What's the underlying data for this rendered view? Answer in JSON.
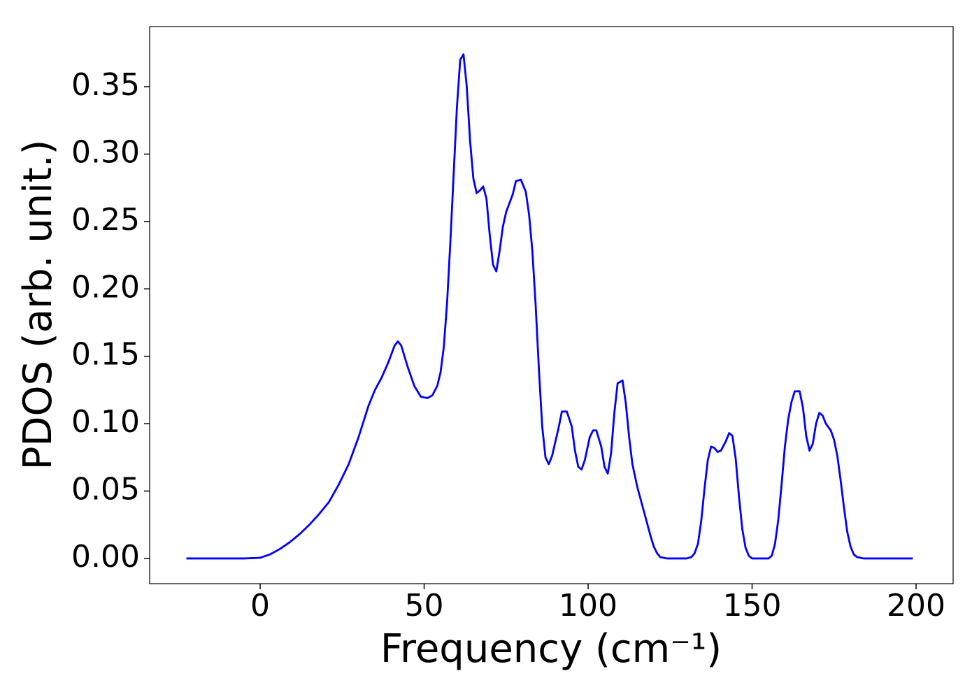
{
  "chart_data": {
    "type": "line",
    "xlabel": "Frequency (cm⁻¹)",
    "ylabel": "PDOS (arb. unit.)",
    "xlim": [
      -33.7,
      211.3
    ],
    "ylim": [
      -0.0187,
      0.3946
    ],
    "xticks": [
      0,
      50,
      100,
      150,
      200
    ],
    "yticks": [
      {
        "value": 0,
        "label": "0.00"
      },
      {
        "value": 0.05,
        "label": "0.05"
      },
      {
        "value": 0.1,
        "label": "0.10"
      },
      {
        "value": 0.15,
        "label": "0.15"
      },
      {
        "value": 0.2,
        "label": "0.20"
      },
      {
        "value": 0.25,
        "label": "0.25"
      },
      {
        "value": 0.3,
        "label": "0.30"
      },
      {
        "value": 0.35,
        "label": "0.35"
      }
    ],
    "grid": false,
    "series": [
      {
        "color": "#0000ff",
        "x": [
          -22.5,
          -10,
          -5,
          0,
          3,
          6,
          9,
          12,
          15,
          18,
          21,
          24,
          27,
          30,
          33,
          35,
          37,
          39,
          41,
          42,
          43,
          45,
          47,
          49,
          51,
          52.5,
          54,
          55,
          56,
          57,
          58,
          59,
          60,
          61,
          62,
          63,
          64,
          65,
          66,
          67,
          68,
          69,
          70,
          71,
          72,
          73,
          74,
          75,
          77,
          78,
          79.5,
          81,
          82,
          83,
          84,
          85,
          86,
          87,
          88,
          89,
          91,
          92,
          93.5,
          95,
          96,
          97,
          98,
          99,
          100.5,
          101.5,
          102.5,
          104,
          105,
          106,
          107,
          108,
          109,
          110.5,
          111.5,
          112.5,
          113.5,
          115,
          117,
          119,
          120,
          121,
          122,
          124,
          130,
          131.5,
          132.5,
          133.5,
          134.5,
          135.5,
          136.5,
          137.5,
          138.5,
          139.5,
          140.5,
          142,
          143,
          144,
          145,
          146,
          147,
          148,
          149,
          150,
          155,
          156,
          157,
          158,
          159,
          160,
          161,
          162,
          163,
          164.5,
          165.5,
          166.5,
          167.5,
          168.5,
          169.5,
          170.5,
          171.5,
          172.5,
          174,
          175,
          176,
          177,
          178,
          179,
          180,
          181,
          182,
          184,
          199
        ],
        "values": [
          0,
          0,
          0,
          0.0005,
          0.003,
          0.007,
          0.012,
          0.018,
          0.025,
          0.033,
          0.042,
          0.055,
          0.07,
          0.09,
          0.113,
          0.125,
          0.134,
          0.145,
          0.158,
          0.161,
          0.158,
          0.142,
          0.128,
          0.12,
          0.119,
          0.121,
          0.128,
          0.138,
          0.157,
          0.19,
          0.235,
          0.285,
          0.335,
          0.37,
          0.374,
          0.35,
          0.31,
          0.282,
          0.271,
          0.273,
          0.276,
          0.267,
          0.24,
          0.218,
          0.213,
          0.228,
          0.246,
          0.257,
          0.27,
          0.28,
          0.281,
          0.272,
          0.255,
          0.228,
          0.188,
          0.14,
          0.098,
          0.075,
          0.07,
          0.076,
          0.097,
          0.109,
          0.109,
          0.098,
          0.08,
          0.068,
          0.066,
          0.073,
          0.09,
          0.095,
          0.095,
          0.083,
          0.068,
          0.063,
          0.078,
          0.108,
          0.13,
          0.132,
          0.115,
          0.09,
          0.07,
          0.053,
          0.035,
          0.017,
          0.009,
          0.004,
          0.001,
          0,
          0,
          0.001,
          0.004,
          0.011,
          0.028,
          0.052,
          0.073,
          0.083,
          0.082,
          0.079,
          0.08,
          0.087,
          0.093,
          0.091,
          0.074,
          0.046,
          0.022,
          0.008,
          0.002,
          0,
          0,
          0.002,
          0.011,
          0.029,
          0.055,
          0.083,
          0.103,
          0.116,
          0.124,
          0.124,
          0.112,
          0.091,
          0.08,
          0.085,
          0.1,
          0.108,
          0.106,
          0.1,
          0.095,
          0.088,
          0.076,
          0.058,
          0.038,
          0.02,
          0.009,
          0.003,
          0.001,
          0,
          0
        ]
      }
    ]
  }
}
